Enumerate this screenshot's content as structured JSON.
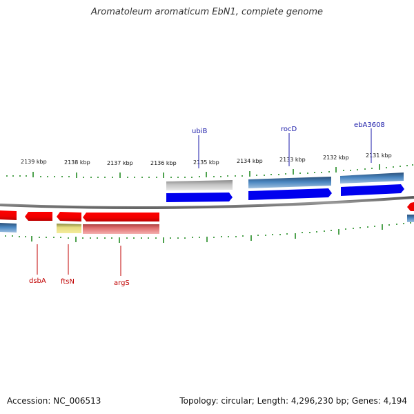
{
  "title": "Aromatoleum aromaticum EbN1, complete genome",
  "footer": {
    "accession": "Accession: NC_006513",
    "topology": "Topology: circular; Length: 4,296,230 bp; Genes: 4,194"
  },
  "kbp_labels": [
    "2139 kbp",
    "2138 kbp",
    "2137 kbp",
    "2136 kbp",
    "2135 kbp",
    "2134 kbp",
    "2133 kbp",
    "2132 kbp",
    "2131 kbp"
  ],
  "genes_forward": [
    "ubiB",
    "rocD",
    "ebA3608"
  ],
  "genes_reverse": [
    "dsbA",
    "ftsN",
    "argS"
  ],
  "colors": {
    "forward_cds": "#0000ee",
    "reverse_cds": "#ee0000",
    "backbone": "#777777",
    "tick": "#228b22",
    "forward_label": "#1a1aa8",
    "reverse_label": "#c00000"
  }
}
